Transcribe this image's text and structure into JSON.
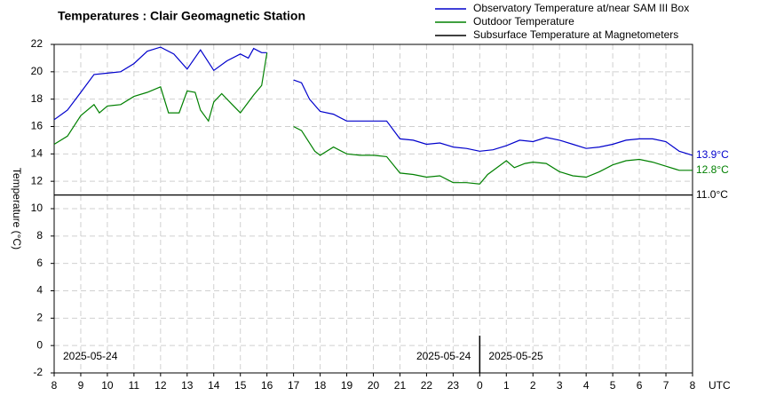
{
  "chart_data": {
    "type": "line",
    "title": "Temperatures : Clair Geomagnetic Station",
    "y_label": "Temperature (°C)",
    "x_unit": "UTC",
    "xlim": [
      8,
      32
    ],
    "ylim": [
      -2,
      22
    ],
    "xticks": [
      8,
      9,
      10,
      11,
      12,
      13,
      14,
      15,
      16,
      17,
      18,
      19,
      20,
      21,
      22,
      23,
      {
        "value": 24,
        "label": "0"
      },
      {
        "value": 25,
        "label": "1"
      },
      {
        "value": 26,
        "label": "2"
      },
      {
        "value": 27,
        "label": "3"
      },
      {
        "value": 28,
        "label": "4"
      },
      {
        "value": 29,
        "label": "5"
      },
      {
        "value": 30,
        "label": "6"
      },
      {
        "value": 31,
        "label": "7"
      },
      {
        "value": 32,
        "label": "8"
      }
    ],
    "yticks": [
      -2,
      0,
      2,
      4,
      6,
      8,
      10,
      12,
      14,
      16,
      18,
      20,
      22
    ],
    "grid": true,
    "legend": "top-right",
    "day_boundary": 24,
    "annotations": [
      {
        "text": "2025-05-24",
        "x": 8,
        "align": "start"
      },
      {
        "text": "2025-05-24",
        "x": 24,
        "align": "end"
      },
      {
        "text": "2025-05-25",
        "x": 24,
        "align": "start"
      }
    ],
    "series": [
      {
        "name": "Observatory Temperature at/near SAM III Box",
        "color": "#0000cc",
        "end_label": "13.9°C",
        "x": [
          8,
          8.5,
          9,
          9.5,
          10,
          10.5,
          11,
          11.5,
          12,
          12.5,
          13,
          13.5,
          14,
          14.5,
          15,
          15.3,
          15.5,
          15.8,
          16,
          16.5,
          17,
          17.3,
          17.6,
          18,
          18.5,
          19,
          19.5,
          20,
          20.5,
          21,
          21.5,
          22,
          22.5,
          23,
          23.5,
          24,
          24.5,
          25,
          25.5,
          26,
          26.5,
          27,
          27.5,
          28,
          28.5,
          29,
          29.5,
          30,
          30.5,
          31,
          31.5,
          32
        ],
        "values": [
          16.5,
          17.2,
          18.5,
          19.8,
          19.9,
          20.0,
          20.6,
          21.5,
          21.8,
          21.3,
          20.2,
          21.6,
          20.1,
          20.8,
          21.3,
          21.0,
          21.7,
          21.4,
          21.4,
          null,
          19.4,
          19.2,
          18.0,
          17.1,
          16.9,
          16.4,
          16.4,
          16.4,
          16.4,
          15.1,
          15.0,
          14.7,
          14.8,
          14.5,
          14.4,
          14.2,
          14.3,
          14.6,
          15.0,
          14.9,
          15.2,
          15.0,
          14.7,
          14.4,
          14.5,
          14.7,
          15.0,
          15.1,
          15.1,
          14.9,
          14.2,
          13.9
        ]
      },
      {
        "name": "Outdoor Temperature",
        "color": "#008000",
        "end_label": "12.8°C",
        "x": [
          8,
          8.5,
          9,
          9.5,
          9.7,
          10,
          10.5,
          11,
          11.5,
          12,
          12.3,
          12.7,
          13,
          13.3,
          13.5,
          13.8,
          14,
          14.3,
          14.6,
          15,
          15.5,
          15.8,
          16,
          16.5,
          17,
          17.3,
          17.8,
          18,
          18.5,
          19,
          19.5,
          20,
          20.5,
          21,
          21.5,
          22,
          22.5,
          23,
          23.5,
          24,
          24.3,
          25,
          25.3,
          25.7,
          26,
          26.5,
          27,
          27.5,
          28,
          28.5,
          29,
          29.5,
          30,
          30.5,
          31,
          31.5,
          32
        ],
        "values": [
          14.7,
          15.3,
          16.8,
          17.6,
          17.0,
          17.5,
          17.6,
          18.2,
          18.5,
          18.9,
          17.0,
          17.0,
          18.6,
          18.5,
          17.2,
          16.4,
          17.8,
          18.4,
          17.8,
          17.0,
          18.3,
          19.0,
          21.4,
          null,
          16.0,
          15.7,
          14.2,
          13.9,
          14.5,
          14.0,
          13.9,
          13.9,
          13.8,
          12.6,
          12.5,
          12.3,
          12.4,
          11.9,
          11.9,
          11.8,
          12.5,
          13.5,
          13.0,
          13.3,
          13.4,
          13.3,
          12.7,
          12.4,
          12.3,
          12.7,
          13.2,
          13.5,
          13.6,
          13.4,
          13.1,
          12.8,
          12.8
        ]
      },
      {
        "name": "Subsurface Temperature at Magnetometers",
        "color": "#000000",
        "end_label": "11.0°C",
        "x": [
          8,
          32
        ],
        "values": [
          11.0,
          11.0
        ]
      }
    ]
  }
}
